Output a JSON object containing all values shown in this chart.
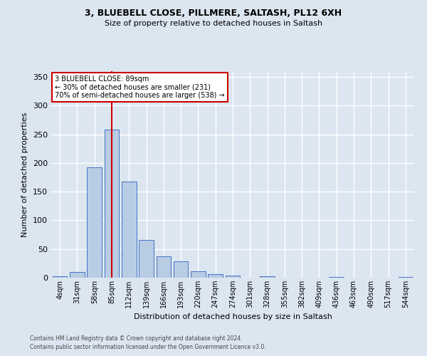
{
  "title1": "3, BLUEBELL CLOSE, PILLMERE, SALTASH, PL12 6XH",
  "title2": "Size of property relative to detached houses in Saltash",
  "xlabel": "Distribution of detached houses by size in Saltash",
  "ylabel": "Number of detached properties",
  "footnote1": "Contains HM Land Registry data © Crown copyright and database right 2024.",
  "footnote2": "Contains public sector information licensed under the Open Government Licence v3.0.",
  "bar_labels": [
    "4sqm",
    "31sqm",
    "58sqm",
    "85sqm",
    "112sqm",
    "139sqm",
    "166sqm",
    "193sqm",
    "220sqm",
    "247sqm",
    "274sqm",
    "301sqm",
    "328sqm",
    "355sqm",
    "382sqm",
    "409sqm",
    "436sqm",
    "463sqm",
    "490sqm",
    "517sqm",
    "544sqm"
  ],
  "bar_values": [
    2,
    10,
    192,
    258,
    168,
    66,
    37,
    28,
    11,
    6,
    4,
    0,
    3,
    0,
    0,
    0,
    1,
    0,
    0,
    0,
    1
  ],
  "bar_color": "#b8cce4",
  "bar_edge_color": "#4472c4",
  "bg_color": "#dce6f1",
  "grid_color": "#ffffff",
  "vline_x": 3,
  "vline_color": "#cc0000",
  "annotation_text": "3 BLUEBELL CLOSE: 89sqm\n← 30% of detached houses are smaller (231)\n70% of semi-detached houses are larger (538) →",
  "annotation_box_color": "#ffffff",
  "annotation_box_edge": "#cc0000",
  "ylim": [
    0,
    360
  ],
  "yticks": [
    0,
    50,
    100,
    150,
    200,
    250,
    300,
    350
  ]
}
